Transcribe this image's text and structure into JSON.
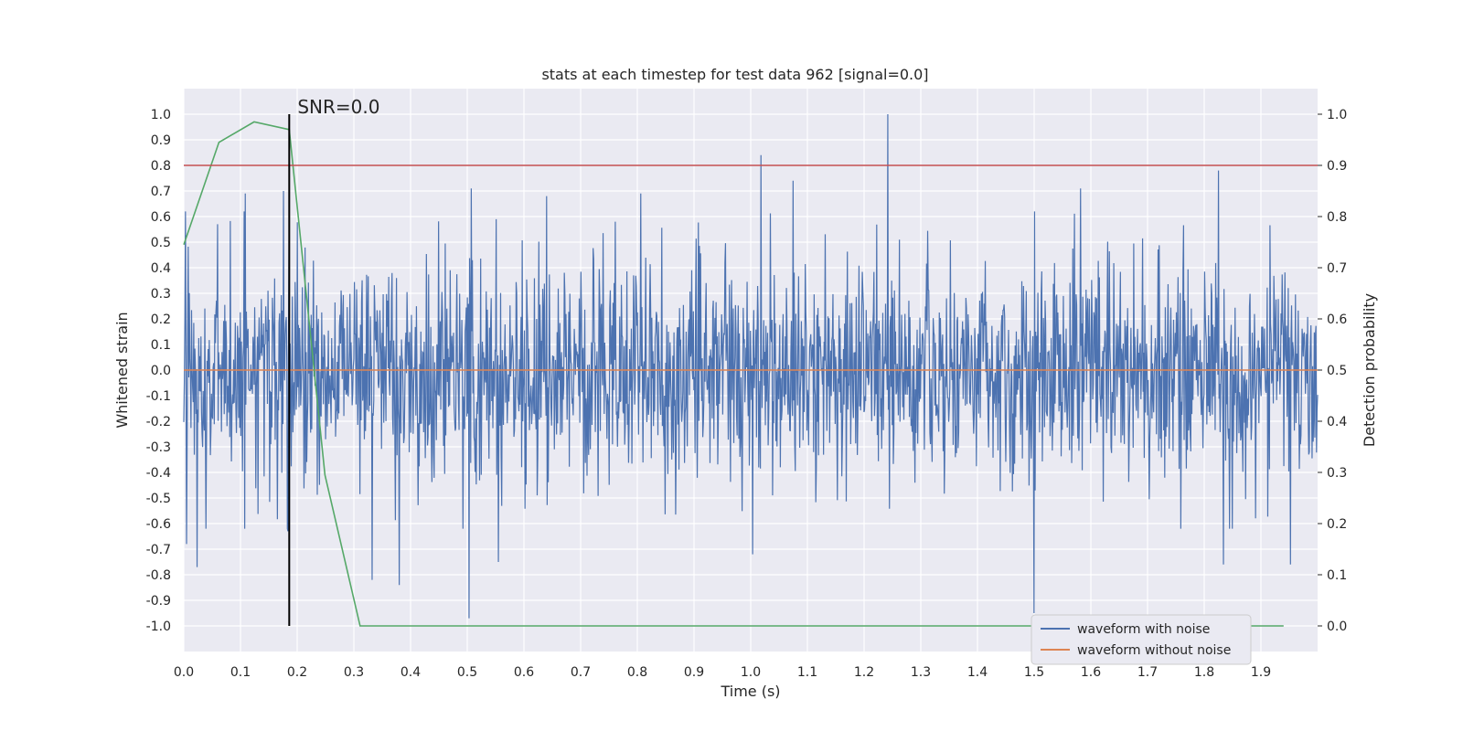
{
  "chart_data": {
    "type": "line",
    "title": "stats at each timestep for test data 962 [signal=0.0]",
    "xlabel": "Time (s)",
    "ylabel_left": "Whitened strain",
    "ylabel_right": "Detection probability",
    "xlim": [
      0.0,
      2.0
    ],
    "ylim_left": [
      -1.1,
      1.1
    ],
    "ylim_right": [
      -0.05,
      1.05
    ],
    "x_ticks": [
      0.0,
      0.1,
      0.2,
      0.3,
      0.4,
      0.5,
      0.6,
      0.7,
      0.8,
      0.9,
      1.0,
      1.1,
      1.2,
      1.3,
      1.4,
      1.5,
      1.6,
      1.7,
      1.8,
      1.9
    ],
    "x_tick_labels": [
      "0.0",
      "0.1",
      "0.2",
      "0.3",
      "0.4",
      "0.5",
      "0.6",
      "0.7",
      "0.8",
      "0.9",
      "1.0",
      "1.1",
      "1.2",
      "1.3",
      "1.4",
      "1.5",
      "1.6",
      "1.7",
      "1.8",
      "1.9"
    ],
    "y_left_ticks": [
      1.0,
      0.9,
      0.8,
      0.7,
      0.6,
      0.5,
      0.4,
      0.3,
      0.2,
      0.1,
      0.0,
      -0.1,
      -0.2,
      -0.3,
      -0.4,
      -0.5,
      -0.6,
      -0.7,
      -0.8,
      -0.9,
      -1.0
    ],
    "y_left_tick_labels": [
      "1.0",
      "0.9",
      "0.8",
      "0.7",
      "0.6",
      "0.5",
      "0.4",
      "0.3",
      "0.2",
      "0.1",
      "0.0",
      "-0.1",
      "-0.2",
      "-0.3",
      "-0.4",
      "-0.5",
      "-0.6",
      "-0.7",
      "-0.8",
      "-0.9",
      "-1.0"
    ],
    "y_right_ticks": [
      1.0,
      0.9,
      0.8,
      0.7,
      0.6,
      0.5,
      0.4,
      0.3,
      0.2,
      0.1,
      0.0
    ],
    "y_right_tick_labels": [
      "1.0",
      "0.9",
      "0.8",
      "0.7",
      "0.6",
      "0.5",
      "0.4",
      "0.3",
      "0.2",
      "0.1",
      "0.0"
    ],
    "grid": true,
    "legend_position": "bottom-right",
    "legend": [
      {
        "name": "waveform with noise",
        "color": "#4c72b0"
      },
      {
        "name": "waveform without noise",
        "color": "#dd8452"
      }
    ],
    "series": [
      {
        "name": "waveform with noise",
        "axis": "left",
        "color": "#4c72b0",
        "style": "noise",
        "amplitude": 0.38,
        "n_samples": 2048,
        "x_range": [
          0.0,
          2.0
        ],
        "peaks": [
          {
            "x": 0.005,
            "y": -0.68
          },
          {
            "x": 0.023,
            "y": -0.77
          },
          {
            "x": 0.06,
            "y": 0.57
          },
          {
            "x": 0.108,
            "y": 0.69
          },
          {
            "x": 0.176,
            "y": 0.7
          },
          {
            "x": 0.184,
            "y": -0.63
          },
          {
            "x": 0.186,
            "y": 0.51
          },
          {
            "x": 0.332,
            "y": -0.82
          },
          {
            "x": 0.38,
            "y": 0.64
          },
          {
            "x": 0.38,
            "y": -0.84
          },
          {
            "x": 0.503,
            "y": -0.97
          },
          {
            "x": 0.507,
            "y": 0.71
          },
          {
            "x": 0.555,
            "y": -0.75
          },
          {
            "x": 0.64,
            "y": 0.68
          },
          {
            "x": 0.806,
            "y": 0.69
          },
          {
            "x": 1.003,
            "y": -0.72
          },
          {
            "x": 1.018,
            "y": 0.84
          },
          {
            "x": 1.075,
            "y": 0.74
          },
          {
            "x": 1.242,
            "y": 1.0
          },
          {
            "x": 1.5,
            "y": -0.95
          },
          {
            "x": 1.582,
            "y": 0.71
          },
          {
            "x": 1.825,
            "y": 0.78
          },
          {
            "x": 1.834,
            "y": -0.76
          },
          {
            "x": 1.952,
            "y": -0.76
          }
        ]
      },
      {
        "name": "waveform without noise",
        "axis": "left",
        "color": "#dd8452",
        "points": [
          [
            0.0,
            0.0
          ],
          [
            2.0,
            0.0
          ]
        ]
      },
      {
        "name": "detection probability",
        "axis": "right",
        "color": "#55a868",
        "points": [
          [
            0.0,
            0.745
          ],
          [
            0.062,
            0.945
          ],
          [
            0.124,
            0.985
          ],
          [
            0.186,
            0.97
          ],
          [
            0.249,
            0.295
          ],
          [
            0.311,
            0.0
          ],
          [
            0.373,
            0.0
          ],
          [
            1.3,
            0.0
          ],
          [
            1.94,
            0.0
          ]
        ]
      },
      {
        "name": "threshold",
        "axis": "right",
        "color": "#c44e52",
        "points": [
          [
            0.0,
            0.9
          ],
          [
            2.0,
            0.9
          ]
        ]
      }
    ],
    "marker": {
      "x": 0.186,
      "y_range": [
        0.0,
        1.0
      ],
      "axis": "right",
      "label": "SNR=0.0",
      "color": "#000000"
    }
  }
}
